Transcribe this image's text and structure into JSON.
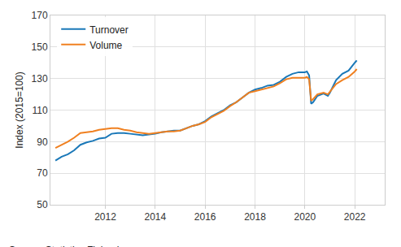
{
  "chart_data": {
    "type": "line",
    "y_label": "Index (2015=100)",
    "source": "Source: Statistics Finland",
    "x": [
      2010.0,
      2010.25,
      2010.5,
      2010.75,
      2011.0,
      2011.25,
      2011.5,
      2011.75,
      2012.0,
      2012.25,
      2012.5,
      2012.75,
      2013.0,
      2013.25,
      2013.5,
      2013.75,
      2014.0,
      2014.25,
      2014.5,
      2014.75,
      2015.0,
      2015.25,
      2015.5,
      2015.75,
      2016.0,
      2016.25,
      2016.5,
      2016.75,
      2017.0,
      2017.25,
      2017.5,
      2017.75,
      2018.0,
      2018.25,
      2018.5,
      2018.75,
      2019.0,
      2019.25,
      2019.5,
      2019.75,
      2020.0,
      2020.08,
      2020.17,
      2020.25,
      2020.33,
      2020.5,
      2020.75,
      2020.92,
      2021.0,
      2021.25,
      2021.5,
      2021.75,
      2022.0,
      2022.08
    ],
    "series": [
      {
        "name": "Turnover",
        "color": "#1a78b8",
        "values": [
          78,
          80.5,
          82,
          84.5,
          88,
          89.5,
          90.5,
          92,
          92.5,
          95,
          95.5,
          95.5,
          95,
          94.5,
          94,
          94.5,
          95,
          96,
          96.5,
          97,
          97,
          98.5,
          100,
          101,
          103,
          106,
          108,
          110,
          113,
          115,
          118,
          121,
          123,
          124,
          125.5,
          126,
          128,
          131,
          133,
          134,
          134,
          134.5,
          132,
          114,
          115,
          119,
          120.5,
          119,
          121,
          129,
          133,
          135,
          140,
          141.5
        ]
      },
      {
        "name": "Volume",
        "color": "#f08020",
        "values": [
          86,
          88,
          90,
          92.5,
          95.5,
          96,
          96.5,
          97.5,
          98,
          98.5,
          98.5,
          97.5,
          97,
          96,
          95.5,
          95,
          95.5,
          96,
          96.5,
          96.5,
          97,
          98.5,
          100,
          101,
          102.5,
          105.5,
          107.5,
          109.5,
          112.5,
          115,
          118,
          121,
          122,
          123,
          124,
          125,
          127,
          129.5,
          130.5,
          130.5,
          130.5,
          131,
          129.5,
          116,
          117,
          120,
          121,
          120,
          121.5,
          126.5,
          129,
          131,
          134.5,
          136
        ]
      }
    ],
    "xlim": [
      2009.8,
      2023.2
    ],
    "xticks": [
      2012,
      2014,
      2016,
      2018,
      2020,
      2022
    ],
    "ylim": [
      50,
      170
    ],
    "yticks": [
      50,
      70,
      90,
      110,
      130,
      150,
      170
    ],
    "grid": true,
    "legend": "top-left"
  }
}
